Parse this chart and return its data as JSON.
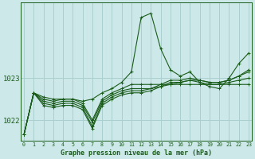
{
  "title": "Graphe pression niveau de la mer (hPa)",
  "bg_color": "#cce8e8",
  "grid_color": "#aacfcf",
  "line_color": "#1a5c1a",
  "yticks": [
    1022,
    1023
  ],
  "ylim": [
    1021.5,
    1024.8
  ],
  "xlim": [
    -0.3,
    23.3
  ],
  "xtick_labels": [
    "0",
    "1",
    "2",
    "3",
    "4",
    "5",
    "6",
    "7",
    "8",
    "9",
    "10",
    "11",
    "12",
    "13",
    "14",
    "15",
    "16",
    "17",
    "18",
    "19",
    "20",
    "21",
    "22",
    "23"
  ],
  "series": [
    [
      1021.65,
      1022.65,
      1022.55,
      1022.5,
      1022.5,
      1022.5,
      1022.45,
      1022.5,
      1022.65,
      1022.75,
      1022.9,
      1023.15,
      1024.45,
      1024.55,
      1023.7,
      1023.2,
      1023.05,
      1023.15,
      1022.9,
      1022.8,
      1022.75,
      1023.0,
      1023.35,
      1023.6
    ],
    [
      1021.65,
      1022.65,
      1022.5,
      1022.45,
      1022.5,
      1022.5,
      1022.4,
      1022.0,
      1022.5,
      1022.65,
      1022.75,
      1022.85,
      1022.85,
      1022.85,
      1022.85,
      1022.85,
      1022.85,
      1022.85,
      1022.85,
      1022.85,
      1022.85,
      1022.85,
      1022.85,
      1022.85
    ],
    [
      1021.65,
      1022.65,
      1022.45,
      1022.4,
      1022.45,
      1022.45,
      1022.35,
      1021.95,
      1022.45,
      1022.6,
      1022.7,
      1022.75,
      1022.75,
      1022.75,
      1022.8,
      1022.85,
      1022.9,
      1022.95,
      1022.9,
      1022.85,
      1022.85,
      1022.9,
      1022.95,
      1023.0
    ],
    [
      1021.65,
      1022.65,
      1022.4,
      1022.35,
      1022.4,
      1022.4,
      1022.3,
      1021.85,
      1022.4,
      1022.55,
      1022.65,
      1022.7,
      1022.7,
      1022.75,
      1022.85,
      1022.95,
      1022.95,
      1023.0,
      1022.95,
      1022.9,
      1022.9,
      1022.95,
      1023.05,
      1023.15
    ],
    [
      1021.65,
      1022.65,
      1022.35,
      1022.3,
      1022.35,
      1022.35,
      1022.25,
      1021.8,
      1022.35,
      1022.5,
      1022.6,
      1022.65,
      1022.65,
      1022.7,
      1022.8,
      1022.9,
      1022.9,
      1022.95,
      1022.95,
      1022.9,
      1022.9,
      1022.95,
      1023.05,
      1023.2
    ]
  ]
}
